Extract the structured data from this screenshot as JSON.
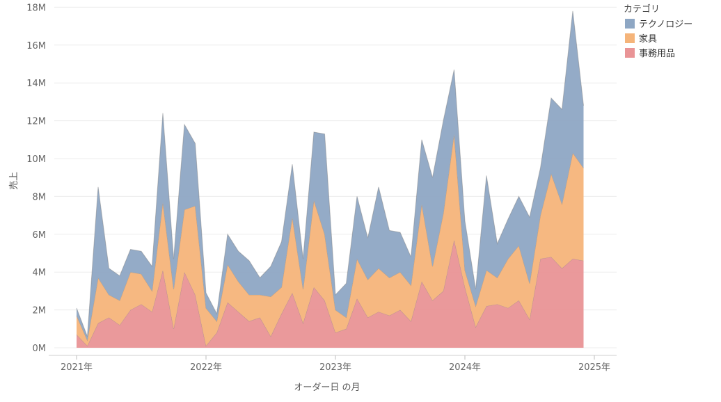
{
  "chart_data": {
    "type": "area",
    "stacked": true,
    "x_axis": {
      "label": "オーダー日 の月",
      "ticks": [
        "2021年",
        "2022年",
        "2023年",
        "2024年",
        "2025年"
      ]
    },
    "y_axis": {
      "label": "売上",
      "ticks": [
        "0M",
        "2M",
        "4M",
        "6M",
        "8M",
        "10M",
        "12M",
        "14M",
        "16M",
        "18M"
      ],
      "range": [
        0,
        18
      ]
    },
    "legend": {
      "title": "カテゴリ",
      "position": "top-right",
      "items": [
        {
          "label": "テクノロジー",
          "color": "#8ea7c4"
        },
        {
          "label": "家具",
          "color": "#f5b47a"
        },
        {
          "label": "事務用品",
          "color": "#e99496"
        }
      ]
    },
    "x": [
      "2021-01",
      "2021-02",
      "2021-03",
      "2021-04",
      "2021-05",
      "2021-06",
      "2021-07",
      "2021-08",
      "2021-09",
      "2021-10",
      "2021-11",
      "2021-12",
      "2022-01",
      "2022-02",
      "2022-03",
      "2022-04",
      "2022-05",
      "2022-06",
      "2022-07",
      "2022-08",
      "2022-09",
      "2022-10",
      "2022-11",
      "2022-12",
      "2023-01",
      "2023-02",
      "2023-03",
      "2023-04",
      "2023-05",
      "2023-06",
      "2023-07",
      "2023-08",
      "2023-09",
      "2023-10",
      "2023-11",
      "2023-12",
      "2024-01",
      "2024-02",
      "2024-03",
      "2024-04",
      "2024-05",
      "2024-06",
      "2024-07",
      "2024-08",
      "2024-09",
      "2024-10",
      "2024-11",
      "2024-12"
    ],
    "series": [
      {
        "name": "事務用品",
        "color": "#e99496",
        "values": [
          0.7,
          0.1,
          1.3,
          1.6,
          1.2,
          2.0,
          2.3,
          1.9,
          4.1,
          1.0,
          4.0,
          2.8,
          0.1,
          0.8,
          2.4,
          1.9,
          1.4,
          1.6,
          0.6,
          1.8,
          2.9,
          1.3,
          3.2,
          2.5,
          0.8,
          1.0,
          2.6,
          1.6,
          1.9,
          1.7,
          2.0,
          1.4,
          3.5,
          2.5,
          3.0,
          5.7,
          3.2,
          1.1,
          2.2,
          2.3,
          2.1,
          2.5,
          1.5,
          4.7,
          4.8,
          4.2,
          4.7,
          4.6
        ]
      },
      {
        "name": "家具",
        "color": "#f5b47a",
        "values": [
          1.0,
          0.3,
          2.4,
          1.2,
          1.3,
          2.0,
          1.6,
          1.1,
          3.6,
          2.1,
          3.3,
          4.7,
          2.0,
          0.6,
          2.0,
          1.6,
          1.4,
          1.2,
          2.1,
          1.4,
          4.0,
          1.8,
          4.6,
          3.5,
          1.2,
          0.6,
          2.1,
          2.0,
          2.3,
          2.0,
          2.0,
          1.9,
          4.1,
          1.8,
          4.1,
          5.6,
          0.9,
          1.1,
          1.9,
          1.4,
          2.6,
          2.9,
          1.9,
          2.3,
          4.4,
          3.4,
          5.6,
          4.9
        ]
      },
      {
        "name": "テクノロジー",
        "color": "#8ea7c4",
        "values": [
          0.4,
          0.2,
          4.8,
          1.4,
          1.3,
          1.2,
          1.2,
          1.3,
          4.7,
          1.6,
          4.5,
          3.3,
          0.8,
          0.4,
          1.6,
          1.6,
          1.8,
          0.9,
          1.6,
          2.4,
          2.8,
          1.6,
          3.6,
          5.3,
          0.8,
          1.8,
          3.3,
          2.2,
          4.3,
          2.5,
          2.1,
          1.5,
          3.4,
          4.7,
          4.9,
          3.4,
          2.6,
          0.9,
          5.0,
          1.8,
          2.1,
          2.6,
          3.5,
          2.5,
          4.0,
          5.0,
          7.5,
          3.3
        ]
      }
    ]
  }
}
